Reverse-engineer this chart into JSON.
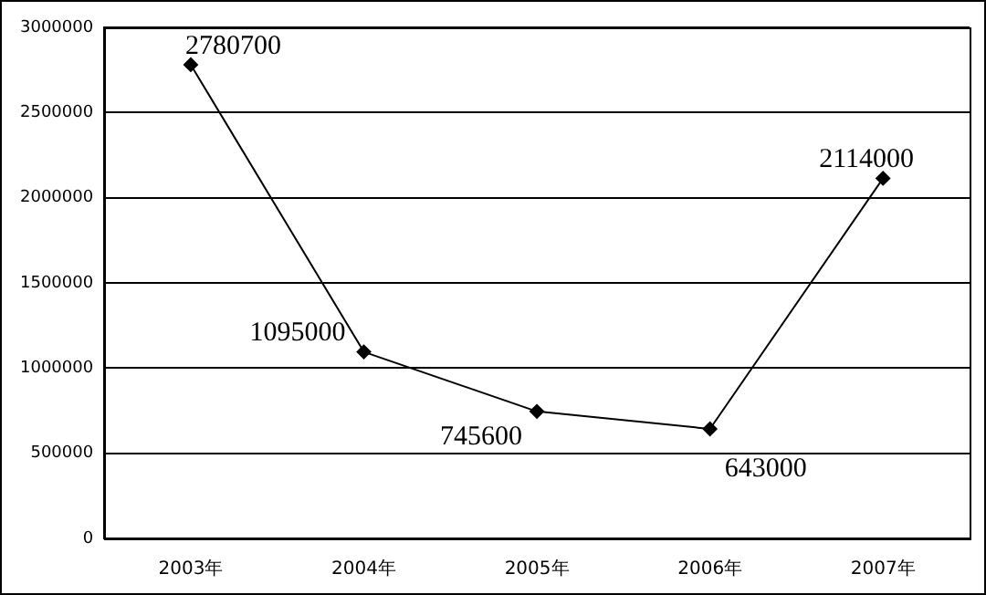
{
  "chart_data": {
    "type": "line",
    "categories": [
      "2003年",
      "2004年",
      "2005年",
      "2006年",
      "2007年"
    ],
    "series": [
      {
        "color": "#000000",
        "values": [
          2780700,
          1095000,
          745600,
          643000,
          2114000
        ]
      }
    ],
    "ylim": [
      0,
      3000000
    ],
    "yticks": [
      0,
      500000,
      1000000,
      1500000,
      2000000,
      2500000,
      3000000
    ],
    "grid": "y",
    "legend": false,
    "marker": "diamond",
    "line_style": "solid",
    "data_labels": true
  }
}
